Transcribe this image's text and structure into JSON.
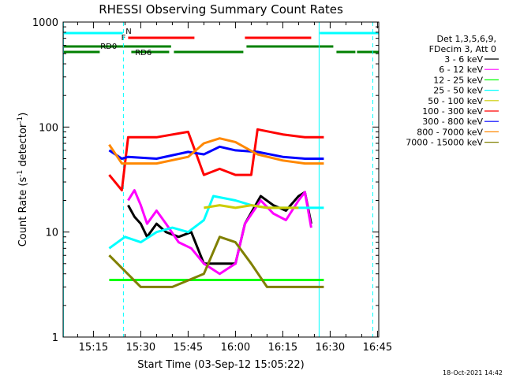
{
  "chart_data": {
    "type": "line",
    "title": "RHESSI Observing Summary Count Rates",
    "xlabel": "Start Time (03-Sep-12 15:05:22)",
    "ylabel": "Count Rate (s",
    "ylabel_sup1": "-1",
    "ylabel_mid": " detector",
    "ylabel_sup2": "-1",
    "ylabel_end": ")",
    "yscale": "log",
    "ylim": [
      1,
      1000
    ],
    "xlim_minutes": [
      5.4,
      105.4
    ],
    "x_ticks": [
      {
        "minute": 15,
        "label": "15:15"
      },
      {
        "minute": 30,
        "label": "15:30"
      },
      {
        "minute": 45,
        "label": "15:45"
      },
      {
        "minute": 60,
        "label": "16:00"
      },
      {
        "minute": 75,
        "label": "16:15"
      },
      {
        "minute": 90,
        "label": "16:30"
      },
      {
        "minute": 105,
        "label": "16:45"
      }
    ],
    "y_ticks": [
      {
        "value": 1,
        "label": "1"
      },
      {
        "value": 10,
        "label": "10"
      },
      {
        "value": 100,
        "label": "100"
      },
      {
        "value": 1000,
        "label": "1000"
      }
    ],
    "legend_header": [
      "Det 1,3,5,6,9,",
      "FDecim 3, Att 0"
    ],
    "series": [
      {
        "name": "3 - 6 keV",
        "color": "#000000",
        "values": [
          [
            26,
            18
          ],
          [
            28,
            14
          ],
          [
            30,
            12
          ],
          [
            32,
            9
          ],
          [
            35,
            12
          ],
          [
            38,
            10
          ],
          [
            42,
            9
          ],
          [
            46,
            10
          ],
          [
            50,
            5
          ],
          [
            55,
            5
          ],
          [
            60,
            5
          ],
          [
            63,
            12
          ],
          [
            68,
            22
          ],
          [
            72,
            18
          ],
          [
            76,
            16
          ],
          [
            80,
            22
          ],
          [
            82,
            24
          ],
          [
            84,
            12
          ]
        ]
      },
      {
        "name": "6 - 12 keV",
        "color": "#ff00ff",
        "values": [
          [
            26,
            20
          ],
          [
            28,
            25
          ],
          [
            30,
            18
          ],
          [
            32,
            12
          ],
          [
            35,
            16
          ],
          [
            38,
            12
          ],
          [
            42,
            8
          ],
          [
            46,
            7
          ],
          [
            50,
            5
          ],
          [
            55,
            4
          ],
          [
            60,
            5
          ],
          [
            63,
            12
          ],
          [
            68,
            20
          ],
          [
            72,
            15
          ],
          [
            76,
            13
          ],
          [
            80,
            20
          ],
          [
            82,
            24
          ],
          [
            84,
            11
          ]
        ]
      },
      {
        "name": "12 - 25 keV",
        "color": "#00ff00",
        "values": [
          [
            20,
            3.5
          ],
          [
            30,
            3.5
          ],
          [
            40,
            3.5
          ],
          [
            50,
            3.5
          ],
          [
            60,
            3.5
          ],
          [
            70,
            3.5
          ],
          [
            80,
            3.5
          ],
          [
            88,
            3.5
          ]
        ]
      },
      {
        "name": "25 - 50 keV",
        "color": "#00ffff",
        "values": [
          [
            20,
            7
          ],
          [
            25,
            9
          ],
          [
            30,
            8
          ],
          [
            35,
            10
          ],
          [
            40,
            11
          ],
          [
            45,
            10
          ],
          [
            50,
            13
          ],
          [
            53,
            22
          ],
          [
            60,
            20
          ],
          [
            65,
            18
          ],
          [
            70,
            17
          ],
          [
            75,
            17
          ],
          [
            80,
            17
          ],
          [
            88,
            17
          ]
        ]
      },
      {
        "name": "50 - 100 keV",
        "color": "#cccc00",
        "values": [
          [
            50,
            17
          ],
          [
            55,
            18
          ],
          [
            60,
            17
          ],
          [
            65,
            18
          ],
          [
            70,
            17
          ],
          [
            75,
            17
          ],
          [
            80,
            17
          ]
        ]
      },
      {
        "name": "100 - 300 keV",
        "color": "#ff0000",
        "values": [
          [
            20,
            35
          ],
          [
            24,
            25
          ],
          [
            26,
            80
          ],
          [
            35,
            80
          ],
          [
            45,
            90
          ],
          [
            50,
            35
          ],
          [
            55,
            40
          ],
          [
            60,
            35
          ],
          [
            65,
            35
          ],
          [
            67,
            95
          ],
          [
            75,
            85
          ],
          [
            82,
            80
          ],
          [
            88,
            80
          ]
        ]
      },
      {
        "name": "300 - 800 keV",
        "color": "#0000ff",
        "values": [
          [
            20,
            60
          ],
          [
            24,
            50
          ],
          [
            26,
            52
          ],
          [
            35,
            50
          ],
          [
            45,
            58
          ],
          [
            50,
            55
          ],
          [
            55,
            65
          ],
          [
            60,
            60
          ],
          [
            67,
            58
          ],
          [
            75,
            52
          ],
          [
            82,
            50
          ],
          [
            88,
            50
          ]
        ]
      },
      {
        "name": "800 - 7000 keV",
        "color": "#ff8800",
        "values": [
          [
            20,
            68
          ],
          [
            24,
            45
          ],
          [
            26,
            45
          ],
          [
            35,
            45
          ],
          [
            45,
            52
          ],
          [
            50,
            70
          ],
          [
            55,
            78
          ],
          [
            60,
            72
          ],
          [
            67,
            55
          ],
          [
            75,
            48
          ],
          [
            82,
            45
          ],
          [
            88,
            45
          ]
        ]
      },
      {
        "name": "7000 - 15000 keV",
        "color": "#808000",
        "values": [
          [
            20,
            6
          ],
          [
            30,
            3
          ],
          [
            40,
            3
          ],
          [
            50,
            4
          ],
          [
            55,
            9
          ],
          [
            60,
            8
          ],
          [
            65,
            5
          ],
          [
            70,
            3
          ],
          [
            80,
            3
          ],
          [
            88,
            3
          ]
        ]
      }
    ],
    "annotations": {
      "N_label": "N",
      "F_label": "F",
      "RD0_label": "RD0",
      "RD6_label": "RD6",
      "flag_colors": {
        "N": "#00ffff",
        "F": "#ff0000",
        "RD": "#008000"
      }
    },
    "timestamp": "18-Oct-2021 14:42"
  }
}
